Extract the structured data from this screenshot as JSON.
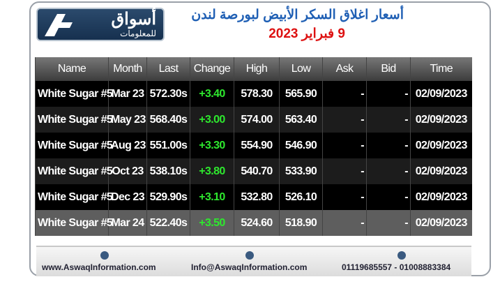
{
  "header": {
    "logo_title": "أسواق",
    "logo_subtitle": "للمعلومات",
    "title": "أسعار اغلاق السكر الأبيض لبورصة لندن",
    "date": "9 فبراير 2023"
  },
  "table": {
    "columns": [
      "Name",
      "Month",
      "Last",
      "Change",
      "High",
      "Low",
      "Ask",
      "Bid",
      "Time"
    ],
    "rows": [
      [
        "White Sugar #5",
        "Mar 23",
        "572.30s",
        "+3.40",
        "578.30",
        "565.90",
        "-",
        "-",
        "02/09/2023"
      ],
      [
        "White Sugar #5",
        "May 23",
        "568.40s",
        "+3.00",
        "574.00",
        "563.40",
        "-",
        "-",
        "02/09/2023"
      ],
      [
        "White Sugar #5",
        "Aug 23",
        "551.00s",
        "+3.30",
        "554.90",
        "546.90",
        "-",
        "-",
        "02/09/2023"
      ],
      [
        "White Sugar #5",
        "Oct 23",
        "538.10s",
        "+3.80",
        "540.70",
        "533.90",
        "-",
        "-",
        "02/09/2023"
      ],
      [
        "White Sugar #5",
        "Dec 23",
        "529.90s",
        "+3.10",
        "532.80",
        "526.10",
        "-",
        "-",
        "02/09/2023"
      ],
      [
        "White Sugar #5",
        "Mar 24",
        "522.40s",
        "+3.50",
        "524.60",
        "518.90",
        "-",
        "-",
        "02/09/2023"
      ]
    ]
  },
  "footer": {
    "website": "www.AswaqInformation.com",
    "email": "Info@AswaqInformation.com",
    "phone": "01119685557 - 01008883384"
  }
}
